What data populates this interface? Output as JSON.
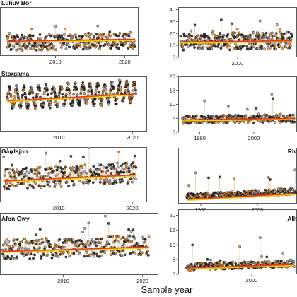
{
  "figure": {
    "xlabel": "Sample year"
  },
  "colors": {
    "point_outline": "#222222",
    "fill_dark": "#1a1a1a",
    "fill_orange": "#e8821e",
    "fill_grey": "#9aa6b8",
    "spike_orange": "#f0a850",
    "spike_grey": "#b8bcc4",
    "trend_red": "#e23a22",
    "trend_yellow": "#f4d000"
  },
  "chart_data": [
    {
      "type": "scatter",
      "title": "Luhuv Bor",
      "pattern": "noisy",
      "xlim": [
        2002,
        2022
      ],
      "ylim": [
        0,
        45
      ],
      "xticks": [
        2010,
        2020
      ],
      "yticks": [],
      "x_start": 2003.0,
      "x_end": 2021.5,
      "base": 12,
      "amp": 6,
      "trend": [
        13,
        15
      ]
    },
    {
      "type": "scatter",
      "title": "",
      "pattern": "noisy",
      "xlim": [
        1988,
        2012
      ],
      "ylim": [
        0,
        42
      ],
      "xticks": [
        2000
      ],
      "yticks": [
        0,
        10,
        20,
        30,
        40
      ],
      "x_start": 1988.5,
      "x_end": 2011,
      "base": 13,
      "amp": 6,
      "trend": [
        12.5,
        13.5
      ]
    },
    {
      "type": "scatter",
      "title": "Storgama",
      "pattern": "seasonal",
      "xlim": [
        2002,
        2022
      ],
      "ylim": [
        0,
        20
      ],
      "xticks": [
        2010,
        2020
      ],
      "yticks": [],
      "x_start": 2003.0,
      "x_end": 2020.5,
      "base": 12,
      "amp": 3.5,
      "trend": [
        11,
        13.5
      ]
    },
    {
      "type": "scatter",
      "title": "",
      "pattern": "spiky",
      "xlim": [
        1986,
        2008
      ],
      "ylim": [
        0,
        20
      ],
      "xticks": [
        1990,
        2000
      ],
      "yticks": [
        0,
        5,
        10,
        15,
        20
      ],
      "x_start": 1986.8,
      "x_end": 2007.5,
      "base": 4.5,
      "amp": 1.8,
      "trend": [
        4.3,
        4.8
      ]
    },
    {
      "type": "scatter",
      "title": "Gårdsjon",
      "pattern": "noisy",
      "xlim": [
        2002,
        2022
      ],
      "ylim": [
        0,
        45
      ],
      "xticks": [
        2010,
        2020
      ],
      "yticks": [],
      "x_start": 2002.5,
      "x_end": 2020.5,
      "base": 19,
      "amp": 7,
      "trend": [
        17,
        22
      ]
    },
    {
      "type": "scatter",
      "title": "Riv",
      "pattern": "spiky",
      "xlim": [
        1986,
        2007
      ],
      "ylim": [
        0,
        58
      ],
      "xticks": [
        1990,
        2000
      ],
      "yticks": [],
      "x_start": 1987.5,
      "x_end": 2006.8,
      "base": 7,
      "amp": 4,
      "trend": [
        4,
        10
      ]
    },
    {
      "type": "scatter",
      "title": "Afon Gwy",
      "pattern": "noisy",
      "xlim": [
        2002,
        2022
      ],
      "ylim": [
        0,
        22
      ],
      "xticks": [
        2010,
        2020
      ],
      "yticks": [],
      "x_start": 2002.3,
      "x_end": 2020.8,
      "base": 9,
      "amp": 3,
      "trend": [
        8.2,
        9.8
      ]
    },
    {
      "type": "scatter",
      "title": "Allt",
      "pattern": "spiky",
      "xlim": [
        1987,
        2008
      ],
      "ylim": [
        0,
        22
      ],
      "xticks": [
        2000
      ],
      "yticks": [
        0,
        5,
        10,
        15,
        20
      ],
      "x_start": 1988.5,
      "x_end": 2007.5,
      "base": 2.5,
      "amp": 1.5,
      "trend": [
        2.0,
        3.2
      ]
    }
  ]
}
